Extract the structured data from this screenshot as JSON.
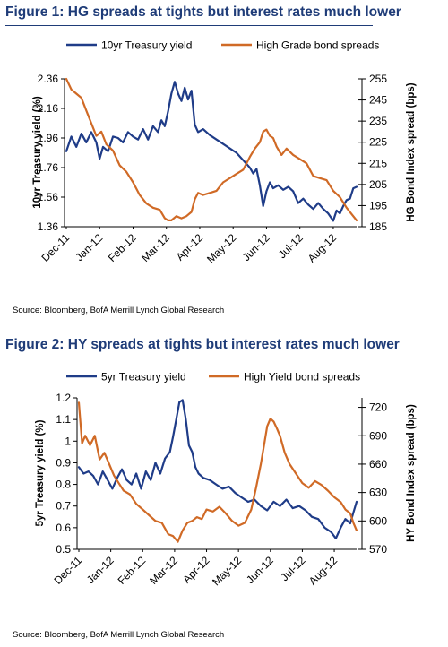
{
  "figures": [
    {
      "title": "Figure 1: HG spreads at tights but interest rates much lower",
      "source": "Source: Bloomberg, BofA Merrill Lynch Global Research"
    },
    {
      "title": "Figure 2: HY spreads at tights but interest rates much lower",
      "source": "Source: Bloomberg, BofA Merrill Lynch Global Research"
    }
  ],
  "chart_data": [
    {
      "type": "line",
      "title": "Figure 1: HG spreads at tights but interest rates much lower",
      "ylabel": "10yr Treasury yield (%)",
      "y2label": "HG Bond Index spread (bps)",
      "ylim": [
        1.36,
        2.36
      ],
      "yticks": [
        "1.36",
        "1.56",
        "1.76",
        "1.96",
        "2.16",
        "2.36"
      ],
      "y2lim": [
        185,
        255
      ],
      "y2ticks": [
        "185",
        "195",
        "205",
        "215",
        "225",
        "235",
        "245",
        "255"
      ],
      "x_categories": [
        "Dec-11",
        "Jan-12",
        "Feb-12",
        "Mar-12",
        "Apr-12",
        "May-12",
        "Jun-12",
        "Jul-12",
        "Aug-12"
      ],
      "xlim": [
        0,
        8.7
      ],
      "legend_position": "top",
      "series": [
        {
          "name": "10yr Treasury yield",
          "axis": "left",
          "color": "#1f3c88",
          "x": [
            0.0,
            0.15,
            0.3,
            0.45,
            0.6,
            0.75,
            0.9,
            1.0,
            1.1,
            1.25,
            1.4,
            1.55,
            1.7,
            1.85,
            2.0,
            2.15,
            2.3,
            2.45,
            2.6,
            2.75,
            2.85,
            2.95,
            3.05,
            3.15,
            3.25,
            3.35,
            3.45,
            3.55,
            3.65,
            3.75,
            3.85,
            3.95,
            4.1,
            4.3,
            4.5,
            4.7,
            4.9,
            5.1,
            5.3,
            5.5,
            5.6,
            5.7,
            5.8,
            5.9,
            6.0,
            6.1,
            6.2,
            6.35,
            6.5,
            6.65,
            6.8,
            6.95,
            7.1,
            7.25,
            7.4,
            7.55,
            7.7,
            7.85,
            8.0,
            8.1,
            8.2,
            8.3,
            8.4,
            8.5,
            8.6,
            8.7
          ],
          "values": [
            1.87,
            1.97,
            1.9,
            1.99,
            1.93,
            2.0,
            1.93,
            1.82,
            1.9,
            1.87,
            1.97,
            1.96,
            1.93,
            2.0,
            1.97,
            1.95,
            2.02,
            1.95,
            2.04,
            2.0,
            2.08,
            2.04,
            2.14,
            2.26,
            2.34,
            2.26,
            2.21,
            2.3,
            2.22,
            2.28,
            2.05,
            2.0,
            2.02,
            1.98,
            1.95,
            1.92,
            1.89,
            1.86,
            1.81,
            1.76,
            1.72,
            1.75,
            1.64,
            1.5,
            1.6,
            1.66,
            1.62,
            1.64,
            1.61,
            1.63,
            1.6,
            1.52,
            1.55,
            1.51,
            1.48,
            1.52,
            1.48,
            1.45,
            1.4,
            1.47,
            1.45,
            1.5,
            1.54,
            1.55,
            1.62,
            1.63
          ]
        },
        {
          "name": "High Grade bond spreads",
          "axis": "right",
          "color": "#d06a26",
          "x": [
            0.0,
            0.15,
            0.3,
            0.45,
            0.6,
            0.75,
            0.9,
            1.05,
            1.2,
            1.4,
            1.6,
            1.8,
            2.0,
            2.2,
            2.4,
            2.6,
            2.8,
            2.95,
            3.05,
            3.15,
            3.3,
            3.45,
            3.6,
            3.75,
            3.85,
            3.95,
            4.1,
            4.3,
            4.5,
            4.7,
            4.9,
            5.1,
            5.3,
            5.5,
            5.65,
            5.8,
            5.9,
            6.0,
            6.1,
            6.2,
            6.3,
            6.45,
            6.6,
            6.8,
            7.0,
            7.2,
            7.4,
            7.6,
            7.8,
            8.0,
            8.2,
            8.4,
            8.55,
            8.7
          ],
          "values": [
            255,
            250,
            248,
            246,
            240,
            234,
            228,
            230,
            224,
            221,
            214,
            211,
            206,
            200,
            196,
            194,
            193,
            189,
            188,
            188,
            190,
            189,
            190,
            192,
            198,
            201,
            200,
            201,
            202,
            206,
            208,
            210,
            212,
            218,
            222,
            225,
            230,
            231,
            228,
            227,
            223,
            219,
            222,
            219,
            217,
            215,
            209,
            208,
            207,
            202,
            199,
            194,
            191,
            188
          ]
        }
      ]
    },
    {
      "type": "line",
      "title": "Figure 2: HY spreads at tights but interest rates much lower",
      "ylabel": "5yr Treasury yield (%)",
      "y2label": "HY Bond Index spread (bps)",
      "ylim": [
        0.5,
        1.2
      ],
      "yticks": [
        "0.5",
        "0.6",
        "0.7",
        "0.8",
        "0.9",
        "1",
        "1.1",
        "1.2"
      ],
      "y2lim": [
        570,
        730
      ],
      "y2ticks": [
        "570",
        "600",
        "630",
        "660",
        "690",
        "720"
      ],
      "x_categories": [
        "Dec-11",
        "Jan-12",
        "Feb-12",
        "Mar-12",
        "Apr-12",
        "May-12",
        "Jun-12",
        "Jul-12",
        "Aug-12"
      ],
      "xlim": [
        0,
        8.7
      ],
      "legend_position": "top",
      "series": [
        {
          "name": "5yr Treasury yield",
          "axis": "left",
          "color": "#1f3c88",
          "x": [
            0.0,
            0.15,
            0.3,
            0.45,
            0.6,
            0.75,
            0.9,
            1.05,
            1.2,
            1.35,
            1.5,
            1.65,
            1.8,
            1.95,
            2.1,
            2.25,
            2.4,
            2.55,
            2.7,
            2.85,
            2.95,
            3.05,
            3.15,
            3.25,
            3.35,
            3.45,
            3.55,
            3.65,
            3.75,
            3.9,
            4.1,
            4.3,
            4.5,
            4.7,
            4.9,
            5.1,
            5.3,
            5.5,
            5.7,
            5.9,
            6.1,
            6.3,
            6.5,
            6.7,
            6.9,
            7.1,
            7.3,
            7.5,
            7.7,
            7.9,
            8.05,
            8.2,
            8.35,
            8.5,
            8.6,
            8.7
          ],
          "values": [
            0.88,
            0.85,
            0.86,
            0.84,
            0.8,
            0.86,
            0.82,
            0.78,
            0.83,
            0.87,
            0.82,
            0.8,
            0.85,
            0.78,
            0.86,
            0.82,
            0.9,
            0.85,
            0.92,
            0.95,
            1.02,
            1.1,
            1.18,
            1.19,
            1.1,
            0.98,
            0.95,
            0.88,
            0.85,
            0.83,
            0.82,
            0.8,
            0.78,
            0.79,
            0.76,
            0.74,
            0.72,
            0.73,
            0.7,
            0.68,
            0.72,
            0.7,
            0.73,
            0.69,
            0.7,
            0.68,
            0.65,
            0.64,
            0.6,
            0.58,
            0.55,
            0.6,
            0.64,
            0.62,
            0.67,
            0.72
          ]
        },
        {
          "name": "High Yield bond spreads",
          "axis": "right",
          "color": "#d06a26",
          "x": [
            0.0,
            0.1,
            0.2,
            0.35,
            0.5,
            0.65,
            0.8,
            0.95,
            1.1,
            1.25,
            1.4,
            1.6,
            1.8,
            2.0,
            2.2,
            2.4,
            2.6,
            2.8,
            2.95,
            3.1,
            3.25,
            3.4,
            3.55,
            3.7,
            3.85,
            4.0,
            4.2,
            4.4,
            4.6,
            4.8,
            5.0,
            5.2,
            5.4,
            5.55,
            5.7,
            5.8,
            5.9,
            6.0,
            6.1,
            6.2,
            6.3,
            6.45,
            6.6,
            6.8,
            7.0,
            7.2,
            7.4,
            7.6,
            7.8,
            8.0,
            8.2,
            8.35,
            8.5,
            8.6,
            8.7
          ],
          "values": [
            725,
            682,
            690,
            680,
            690,
            665,
            672,
            660,
            648,
            640,
            632,
            628,
            618,
            612,
            606,
            600,
            598,
            586,
            584,
            578,
            590,
            598,
            600,
            604,
            602,
            612,
            610,
            615,
            608,
            600,
            595,
            598,
            612,
            635,
            660,
            680,
            700,
            708,
            705,
            698,
            690,
            672,
            660,
            650,
            640,
            635,
            642,
            638,
            632,
            625,
            620,
            612,
            608,
            598,
            590
          ]
        }
      ]
    }
  ]
}
